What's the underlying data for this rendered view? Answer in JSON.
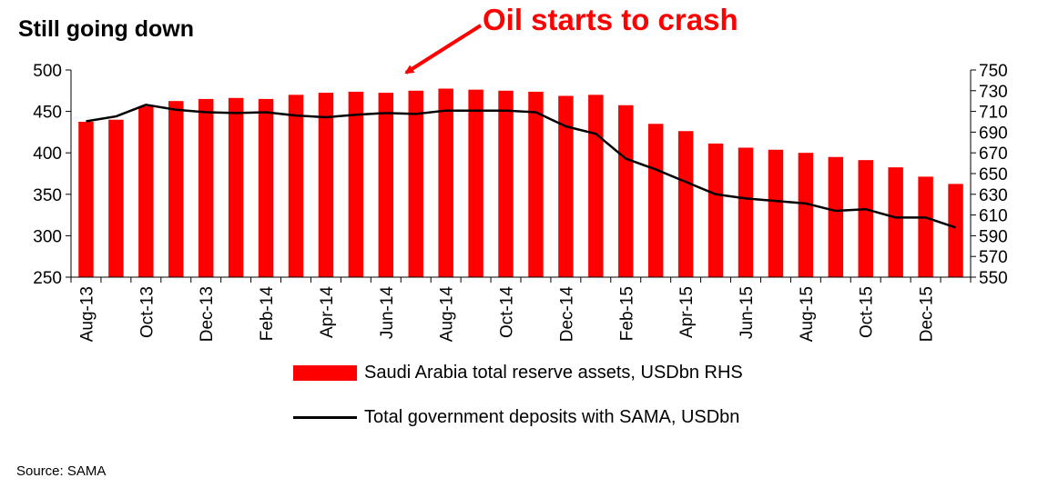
{
  "title": "Still going down",
  "source": "Source: SAMA",
  "annotation": {
    "text": "Oil starts to crash",
    "color": "#ff0000"
  },
  "legend": {
    "bar_label": "Saudi Arabia total reserve assets, USDbn RHS",
    "line_label": "Total government deposits with SAMA, USDbn"
  },
  "chart_data": {
    "type": "bar+line",
    "categories": [
      "Aug-13",
      "Sep-13",
      "Oct-13",
      "Nov-13",
      "Dec-13",
      "Jan-14",
      "Feb-14",
      "Mar-14",
      "Apr-14",
      "May-14",
      "Jun-14",
      "Jul-14",
      "Aug-14",
      "Sep-14",
      "Oct-14",
      "Nov-14",
      "Dec-14",
      "Jan-15",
      "Feb-15",
      "Mar-15",
      "Apr-15",
      "May-15",
      "Jun-15",
      "Jul-15",
      "Aug-15",
      "Sep-15",
      "Oct-15",
      "Nov-15",
      "Dec-15",
      "Jan-16"
    ],
    "x_tick_labels": [
      "Aug-13",
      "Oct-13",
      "Dec-13",
      "Feb-14",
      "Apr-14",
      "Jun-14",
      "Aug-14",
      "Oct-14",
      "Dec-14",
      "Feb-15",
      "Apr-15",
      "Jun-15",
      "Aug-15",
      "Oct-15",
      "Dec-15"
    ],
    "bar_series": {
      "name": "Saudi Arabia total reserve assets, USDbn RHS",
      "axis": "right",
      "color": "#ff0000",
      "values": [
        700,
        702,
        715,
        720,
        722,
        723,
        722,
        726,
        728,
        729,
        728,
        730,
        732,
        731,
        730,
        729,
        725,
        726,
        716,
        698,
        691,
        679,
        675,
        673,
        670,
        666,
        663,
        656,
        647,
        640
      ]
    },
    "line_series": {
      "name": "Total government deposits with SAMA, USDbn",
      "axis": "left",
      "color": "#000000",
      "values": [
        438,
        444,
        458,
        452,
        449,
        448,
        449,
        445,
        443,
        446,
        448,
        447,
        451,
        451,
        451,
        449,
        432,
        423,
        393,
        380,
        365,
        350,
        345,
        342,
        339,
        330,
        332,
        322,
        322,
        310
      ]
    },
    "left_axis": {
      "ylim": [
        250,
        500
      ],
      "ticks": [
        250,
        300,
        350,
        400,
        450,
        500
      ]
    },
    "right_axis": {
      "ylim": [
        550,
        750
      ],
      "ticks": [
        550,
        570,
        590,
        610,
        630,
        650,
        670,
        690,
        710,
        730,
        750
      ]
    }
  }
}
